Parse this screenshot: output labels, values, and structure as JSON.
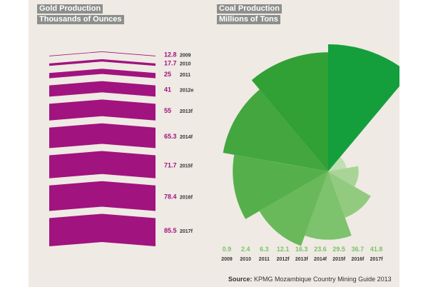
{
  "colors": {
    "background": "#efeae3",
    "gold": "#a1137f",
    "gold_label": "#a1137f",
    "coal_shades": [
      "#bfe0b1",
      "#a8d597",
      "#92cb80",
      "#7dc26c",
      "#69b95b",
      "#55b04c",
      "#43a63f",
      "#31a035",
      "#149f3c"
    ],
    "coal_label": "#7cc16b",
    "header_bg": "#8c8f8b"
  },
  "gold_header": {
    "line1": "Gold Production",
    "line2": "Thousands of Ounces"
  },
  "coal_header": {
    "line1": "Coal Production",
    "line2": "Millions of Tons"
  },
  "source": {
    "prefix": "Source:",
    "text": "KPMG Mozambique Country Mining Guide 2013"
  },
  "chart_data": [
    {
      "type": "bar",
      "title": "Gold Production",
      "subtitle": "Thousands of Ounces",
      "categories": [
        "2009",
        "2010",
        "2011",
        "2012e",
        "2013f",
        "2014f",
        "2015f",
        "2016f",
        "2017f"
      ],
      "values": [
        12.8,
        17.7,
        25,
        41,
        55,
        65.3,
        71.7,
        78.4,
        85.5
      ],
      "value_labels": [
        "12.8",
        "17.7",
        "25",
        "41",
        "55",
        "65.3",
        "71.7",
        "78.4",
        "85.5"
      ]
    },
    {
      "type": "pie",
      "title": "Coal Production",
      "subtitle": "Millions of Tons",
      "categories": [
        "2009",
        "2010",
        "2011",
        "2012f",
        "2013f",
        "2014f",
        "2015f",
        "2016f",
        "2017f"
      ],
      "values": [
        0.9,
        2.4,
        6.3,
        12.1,
        16.3,
        23.6,
        29.5,
        36.7,
        41.8
      ],
      "value_labels": [
        "0.9",
        "2.4",
        "6.3",
        "12.1",
        "16.3",
        "23.6",
        "29.5",
        "36.7",
        "41.8"
      ]
    }
  ]
}
